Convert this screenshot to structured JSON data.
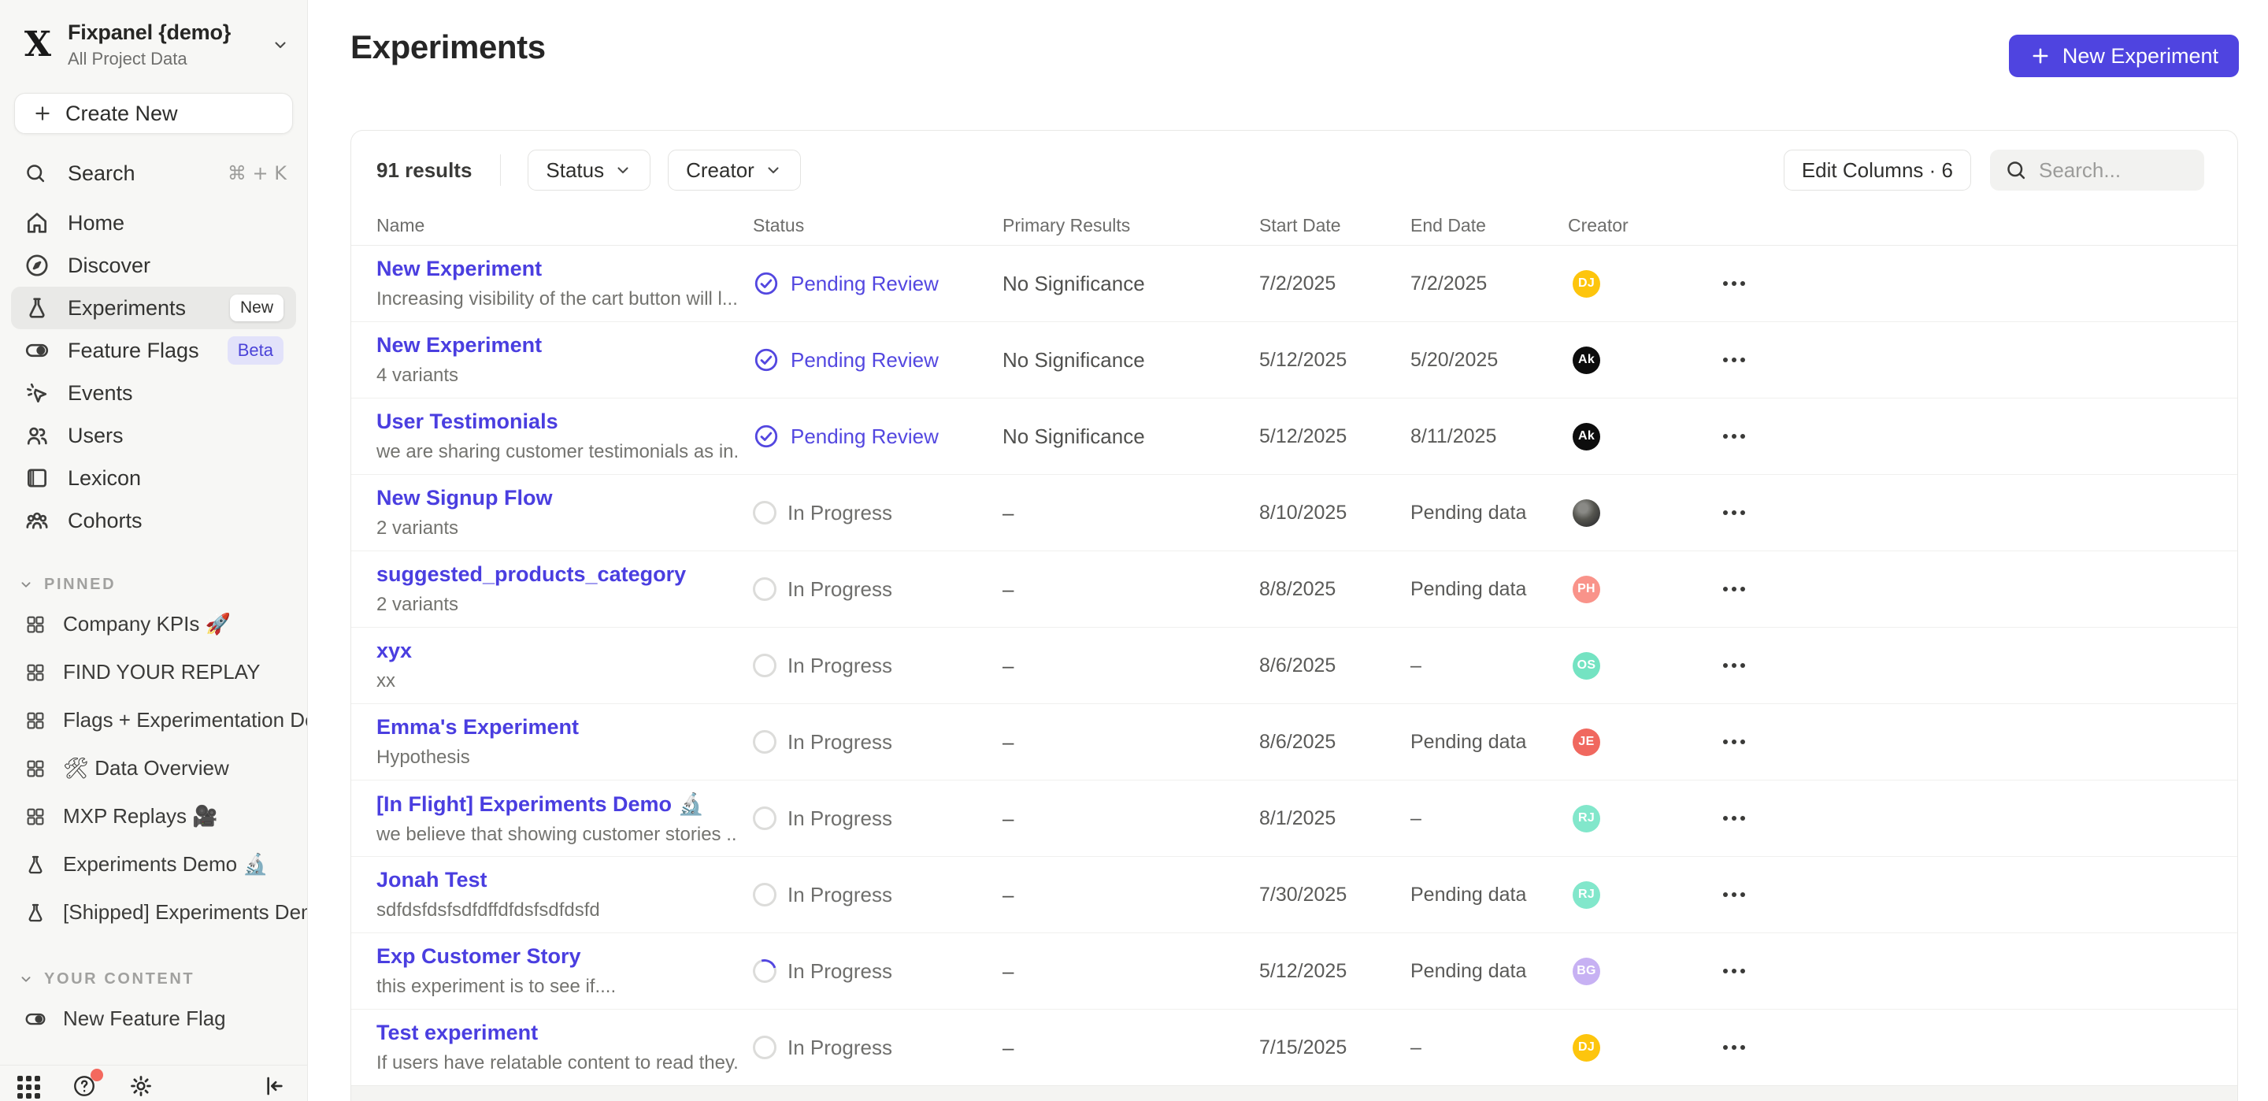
{
  "workspace": {
    "name": "Fixpanel {demo}",
    "subtitle": "All Project Data",
    "logo": "X"
  },
  "sidebar": {
    "create_new": "Create New",
    "search": {
      "label": "Search",
      "hotkey": "⌘ + K"
    },
    "nav": [
      {
        "icon": "home-icon",
        "label": "Home"
      },
      {
        "icon": "discover-icon",
        "label": "Discover"
      },
      {
        "icon": "flask-icon",
        "label": "Experiments",
        "active": true,
        "badge": "New",
        "badge_style": "white"
      },
      {
        "icon": "toggle-icon",
        "label": "Feature Flags",
        "badge": "Beta",
        "badge_style": "purple"
      },
      {
        "icon": "events-icon",
        "label": "Events"
      },
      {
        "icon": "users-icon",
        "label": "Users"
      },
      {
        "icon": "lexicon-icon",
        "label": "Lexicon"
      },
      {
        "icon": "cohorts-icon",
        "label": "Cohorts"
      }
    ],
    "sections": [
      {
        "title": "PINNED",
        "items": [
          {
            "icon": "board-icon",
            "label": "Company KPIs 🚀"
          },
          {
            "icon": "board-icon",
            "label": "FIND YOUR REPLAY"
          },
          {
            "icon": "board-icon",
            "label": "Flags + Experimentation Demo ,"
          },
          {
            "icon": "board-icon",
            "label": "🛠 Data Overview"
          },
          {
            "icon": "board-icon",
            "label": "MXP Replays 🎥"
          },
          {
            "icon": "flask-icon",
            "label": "Experiments Demo 🔬"
          },
          {
            "icon": "flask-icon",
            "label": "[Shipped] Experiments Demo 🖊"
          }
        ]
      },
      {
        "title": "YOUR CONTENT",
        "items": [
          {
            "icon": "toggle-icon",
            "label": "New Feature Flag"
          }
        ]
      }
    ],
    "bottom_icons": [
      "apps-grid-icon",
      "help-icon",
      "settings-gear-icon",
      "collapse-sidebar-icon"
    ]
  },
  "header": {
    "title": "Experiments",
    "new_button": "New Experiment"
  },
  "toolbar": {
    "results": "91 results",
    "filters": [
      "Status",
      "Creator"
    ],
    "edit_columns": "Edit Columns · 6",
    "search_placeholder": "Search..."
  },
  "table": {
    "columns": [
      "Name",
      "Status",
      "Primary Results",
      "Start Date",
      "End Date",
      "Creator"
    ],
    "rows": [
      {
        "name": "New Experiment",
        "subtitle": "Increasing visibility of the cart button will l...",
        "status": "Pending Review",
        "status_kind": "review",
        "primary": "No Significance",
        "start": "7/2/2025",
        "end": "7/2/2025",
        "avatar": {
          "kind": "initials",
          "text": "DJ",
          "bg": "#fdc50d"
        }
      },
      {
        "name": "New Experiment",
        "subtitle": "4 variants",
        "status": "Pending Review",
        "status_kind": "review",
        "primary": "No Significance",
        "start": "5/12/2025",
        "end": "5/20/2025",
        "avatar": {
          "kind": "initials",
          "text": "Ak",
          "bg": "#0d0d0d"
        }
      },
      {
        "name": "User Testimonials",
        "subtitle": "we are sharing customer testimonials as in...",
        "status": "Pending Review",
        "status_kind": "review",
        "primary": "No Significance",
        "start": "5/12/2025",
        "end": "8/11/2025",
        "avatar": {
          "kind": "initials",
          "text": "Ak",
          "bg": "#0d0d0d"
        }
      },
      {
        "name": "New Signup Flow",
        "subtitle": "2 variants",
        "status": "In Progress",
        "status_kind": "progress",
        "primary": "–",
        "start": "8/10/2025",
        "end": "Pending data",
        "avatar": {
          "kind": "photo"
        }
      },
      {
        "name": "suggested_products_category",
        "subtitle": "2 variants",
        "status": "In Progress",
        "status_kind": "progress",
        "primary": "–",
        "start": "8/8/2025",
        "end": "Pending data",
        "avatar": {
          "kind": "initials",
          "text": "PH",
          "bg": "#f9938a"
        }
      },
      {
        "name": "xyx",
        "subtitle": "xx",
        "status": "In Progress",
        "status_kind": "progress",
        "primary": "–",
        "start": "8/6/2025",
        "end": "–",
        "avatar": {
          "kind": "initials",
          "text": "OS",
          "bg": "#74e3c2"
        }
      },
      {
        "name": "Emma's Experiment",
        "subtitle": "Hypothesis",
        "status": "In Progress",
        "status_kind": "progress",
        "primary": "–",
        "start": "8/6/2025",
        "end": "Pending data",
        "avatar": {
          "kind": "initials",
          "text": "JE",
          "bg": "#f0685f"
        }
      },
      {
        "name": "[In Flight] Experiments Demo 🔬",
        "subtitle": "we believe that showing customer stories ...",
        "status": "In Progress",
        "status_kind": "progress",
        "primary": "–",
        "start": "8/1/2025",
        "end": "–",
        "avatar": {
          "kind": "initials",
          "text": "RJ",
          "bg": "#82e7cb"
        }
      },
      {
        "name": "Jonah Test",
        "subtitle": "sdfdsfdsfsdfdffdfdsfsdfdsfd",
        "status": "In Progress",
        "status_kind": "progress",
        "primary": "–",
        "start": "7/30/2025",
        "end": "Pending data",
        "avatar": {
          "kind": "initials",
          "text": "RJ",
          "bg": "#82e7cb"
        }
      },
      {
        "name": "Exp Customer Story",
        "subtitle": "this experiment is to see if....",
        "status": "In Progress",
        "status_kind": "progress_active",
        "primary": "–",
        "start": "5/12/2025",
        "end": "Pending data",
        "avatar": {
          "kind": "initials",
          "text": "BG",
          "bg": "#c7b1f3"
        }
      },
      {
        "name": "Test experiment",
        "subtitle": "If users have relatable content to read they...",
        "status": "In Progress",
        "status_kind": "progress",
        "primary": "–",
        "start": "7/15/2025",
        "end": "–",
        "avatar": {
          "kind": "initials",
          "text": "DJ",
          "bg": "#fdc50d"
        }
      }
    ]
  },
  "colors": {
    "accent": "#4f44e0",
    "link": "#4a3ee0",
    "status_review": "#5347e0"
  }
}
